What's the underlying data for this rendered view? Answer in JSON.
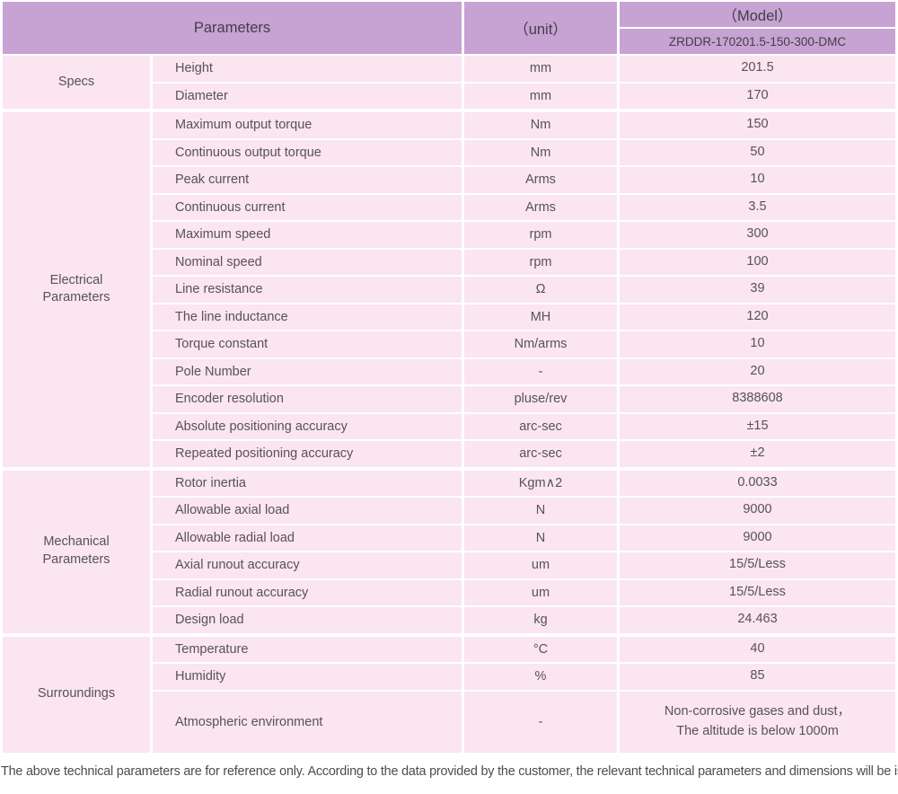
{
  "header": {
    "parameters_label": "Parameters",
    "unit_label": "（unit）",
    "model_label": "（Model）",
    "model_number": "ZRDDR-170201.5-150-300-DMC"
  },
  "sections": [
    {
      "label": "Specs",
      "rows": [
        {
          "name": "Height",
          "unit": "mm",
          "value": "201.5"
        },
        {
          "name": "Diameter",
          "unit": "mm",
          "value": "170"
        }
      ]
    },
    {
      "label": "Electrical\nParameters",
      "rows": [
        {
          "name": "Maximum output torque",
          "unit": "Nm",
          "value": "150"
        },
        {
          "name": "Continuous output torque",
          "unit": "Nm",
          "value": "50"
        },
        {
          "name": "Peak current",
          "unit": "Arms",
          "value": "10"
        },
        {
          "name": "Continuous current",
          "unit": "Arms",
          "value": "3.5"
        },
        {
          "name": "Maximum speed",
          "unit": "rpm",
          "value": "300"
        },
        {
          "name": "Nominal speed",
          "unit": "rpm",
          "value": "100"
        },
        {
          "name": "Line resistance",
          "unit": "Ω",
          "value": "39"
        },
        {
          "name": "The line inductance",
          "unit": "MH",
          "value": "120"
        },
        {
          "name": "Torque constant",
          "unit": "Nm/arms",
          "value": "10"
        },
        {
          "name": "Pole Number",
          "unit": "-",
          "value": "20"
        },
        {
          "name": "Encoder resolution",
          "unit": "pluse/rev",
          "value": "8388608"
        },
        {
          "name": "Absolute positioning accuracy",
          "unit": "arc-sec",
          "value": "±15"
        },
        {
          "name": "Repeated positioning accuracy",
          "unit": "arc-sec",
          "value": "±2"
        }
      ]
    },
    {
      "label": "Mechanical\nParameters",
      "rows": [
        {
          "name": "Rotor inertia",
          "unit": "Kgm∧2",
          "value": "0.0033"
        },
        {
          "name": "Allowable axial load",
          "unit": "N",
          "value": "9000"
        },
        {
          "name": "Allowable radial load",
          "unit": "N",
          "value": "9000"
        },
        {
          "name": "Axial runout accuracy",
          "unit": "um",
          "value": "15/5/Less"
        },
        {
          "name": "Radial runout accuracy",
          "unit": "um",
          "value": "15/5/Less"
        },
        {
          "name": "Design load",
          "unit": "kg",
          "value": "24.463"
        }
      ]
    },
    {
      "label": "Surroundings",
      "rows": [
        {
          "name": "Temperature",
          "unit": "°C",
          "value": "40"
        },
        {
          "name": "Humidity",
          "unit": "%",
          "value": "85"
        },
        {
          "name": "Atmospheric environment",
          "unit": "-",
          "value": "Non-corrosive gases and dust，\nThe altitude is below 1000m"
        }
      ]
    }
  ],
  "footer": {
    "note": "The above technical parameters are for reference only. According to the data provided by the customer, the relevant technical parameters and dimensions will be issued."
  },
  "colors": {
    "header_bg": "#c6a3d2",
    "row_bg": "#fae5f0",
    "text": "#57525a",
    "header_text": "#433e49",
    "footer_text": "#4c4c4c",
    "divider": "#ffffff"
  }
}
